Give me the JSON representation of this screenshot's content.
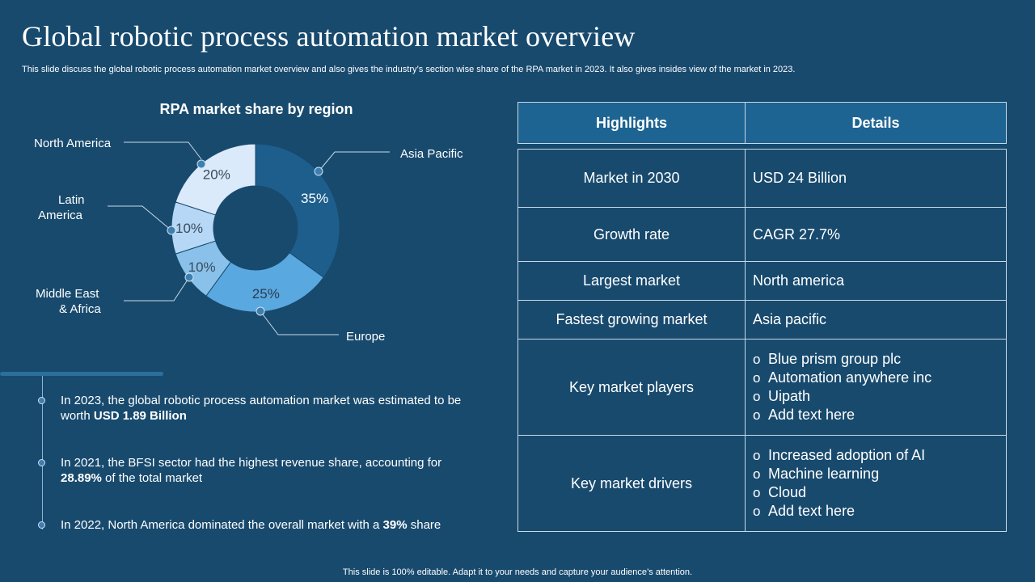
{
  "title": "Global robotic process automation market overview",
  "subtitle": "This slide discuss the global robotic process automation market overview and also gives the industry’s section wise share of the RPA market in 2023. It also gives insides view of the market in 2023.",
  "chart_data": {
    "type": "pie",
    "title": "RPA market share by region",
    "categories": [
      "Asia Pacific",
      "Europe",
      "Middle East & Africa",
      "Latin America",
      "North America"
    ],
    "values": [
      35,
      25,
      10,
      10,
      20
    ],
    "value_labels": [
      "35%",
      "25%",
      "10%",
      "10%",
      "20%"
    ],
    "colors": [
      "#1e5e8c",
      "#5aa8e0",
      "#89c1ea",
      "#b6d7f5",
      "#dbeafb"
    ]
  },
  "region_labels": {
    "north_america": "North America",
    "latin_america_1": "Latin",
    "latin_america_2": "America",
    "mea_1": "Middle East",
    "mea_2": "& Africa",
    "asia_pacific": "Asia Pacific",
    "europe": "Europe"
  },
  "facts": [
    {
      "text": "In 2023, the global robotic process automation market was estimated to be worth ",
      "bold": "USD 1.89 Billion",
      "after": ""
    },
    {
      "text": "In 2021, the BFSI sector had the highest revenue share, accounting for ",
      "bold": "28.89%",
      "after": " of the total market"
    },
    {
      "text": "In 2022, North America dominated the overall market with a ",
      "bold": "39%",
      "after": " share"
    }
  ],
  "table": {
    "headers": [
      "Highlights",
      "Details"
    ],
    "rows": [
      {
        "label": "Market in 2030",
        "value": "USD 24 Billion"
      },
      {
        "label": "Growth rate",
        "value": "CAGR 27.7%"
      },
      {
        "label": "Largest market",
        "value": "North america"
      },
      {
        "label": "Fastest growing market",
        "value": "Asia pacific"
      }
    ],
    "players_label": "Key market players",
    "players": [
      "Blue prism group plc",
      "Automation anywhere inc",
      "Uipath",
      "Add text here"
    ],
    "drivers_label": "Key market drivers",
    "drivers": [
      "Increased adoption of AI",
      "Machine learning",
      "Cloud",
      "Add text here"
    ],
    "bullet_glyph": "o"
  },
  "footer": "This slide is 100% editable. Adapt it to your needs and capture your audience’s attention."
}
